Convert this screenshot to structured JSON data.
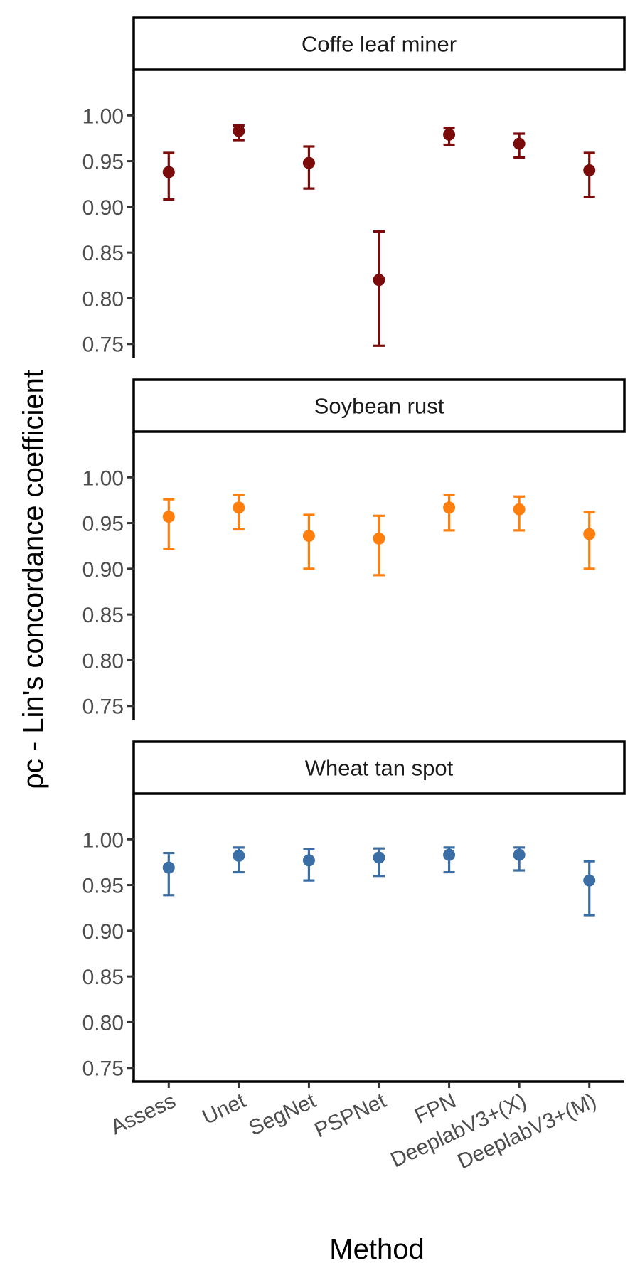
{
  "chart_data": {
    "type": "scatter",
    "subtype": "point-with-error-bars, faceted",
    "xlabel": "Method",
    "ylabel": "ρc - Lin's concordance coefficient",
    "categories": [
      "Assess",
      "Unet",
      "SegNet",
      "PSPNet",
      "FPN",
      "DeeplabV3+(X)",
      "DeeplabV3+(M)"
    ],
    "ylim": [
      0.735,
      1.05
    ],
    "yticks": [
      0.75,
      0.8,
      0.85,
      0.9,
      0.95,
      1.0
    ],
    "ytick_labels": [
      "0.75",
      "0.80",
      "0.85",
      "0.90",
      "0.95",
      "1.00"
    ],
    "grid": false,
    "legend": "none",
    "panels": [
      {
        "title": "Coffe leaf miner",
        "color": "#7b0a0a",
        "values": [
          0.938,
          0.983,
          0.948,
          0.82,
          0.979,
          0.969,
          0.94
        ],
        "lower": [
          0.908,
          0.973,
          0.92,
          0.748,
          0.968,
          0.954,
          0.911
        ],
        "upper": [
          0.959,
          0.989,
          0.966,
          0.873,
          0.986,
          0.98,
          0.959
        ]
      },
      {
        "title": "Soybean rust",
        "color": "#ff7f0e",
        "values": [
          0.957,
          0.967,
          0.936,
          0.933,
          0.967,
          0.965,
          0.938
        ],
        "lower": [
          0.922,
          0.943,
          0.9,
          0.893,
          0.942,
          0.942,
          0.9
        ],
        "upper": [
          0.976,
          0.981,
          0.959,
          0.958,
          0.981,
          0.979,
          0.962
        ]
      },
      {
        "title": "Wheat tan spot",
        "color": "#3a6ea5",
        "values": [
          0.969,
          0.982,
          0.977,
          0.98,
          0.983,
          0.983,
          0.955
        ],
        "lower": [
          0.939,
          0.964,
          0.955,
          0.96,
          0.964,
          0.966,
          0.917
        ],
        "upper": [
          0.985,
          0.991,
          0.989,
          0.99,
          0.991,
          0.991,
          0.976
        ]
      }
    ]
  }
}
